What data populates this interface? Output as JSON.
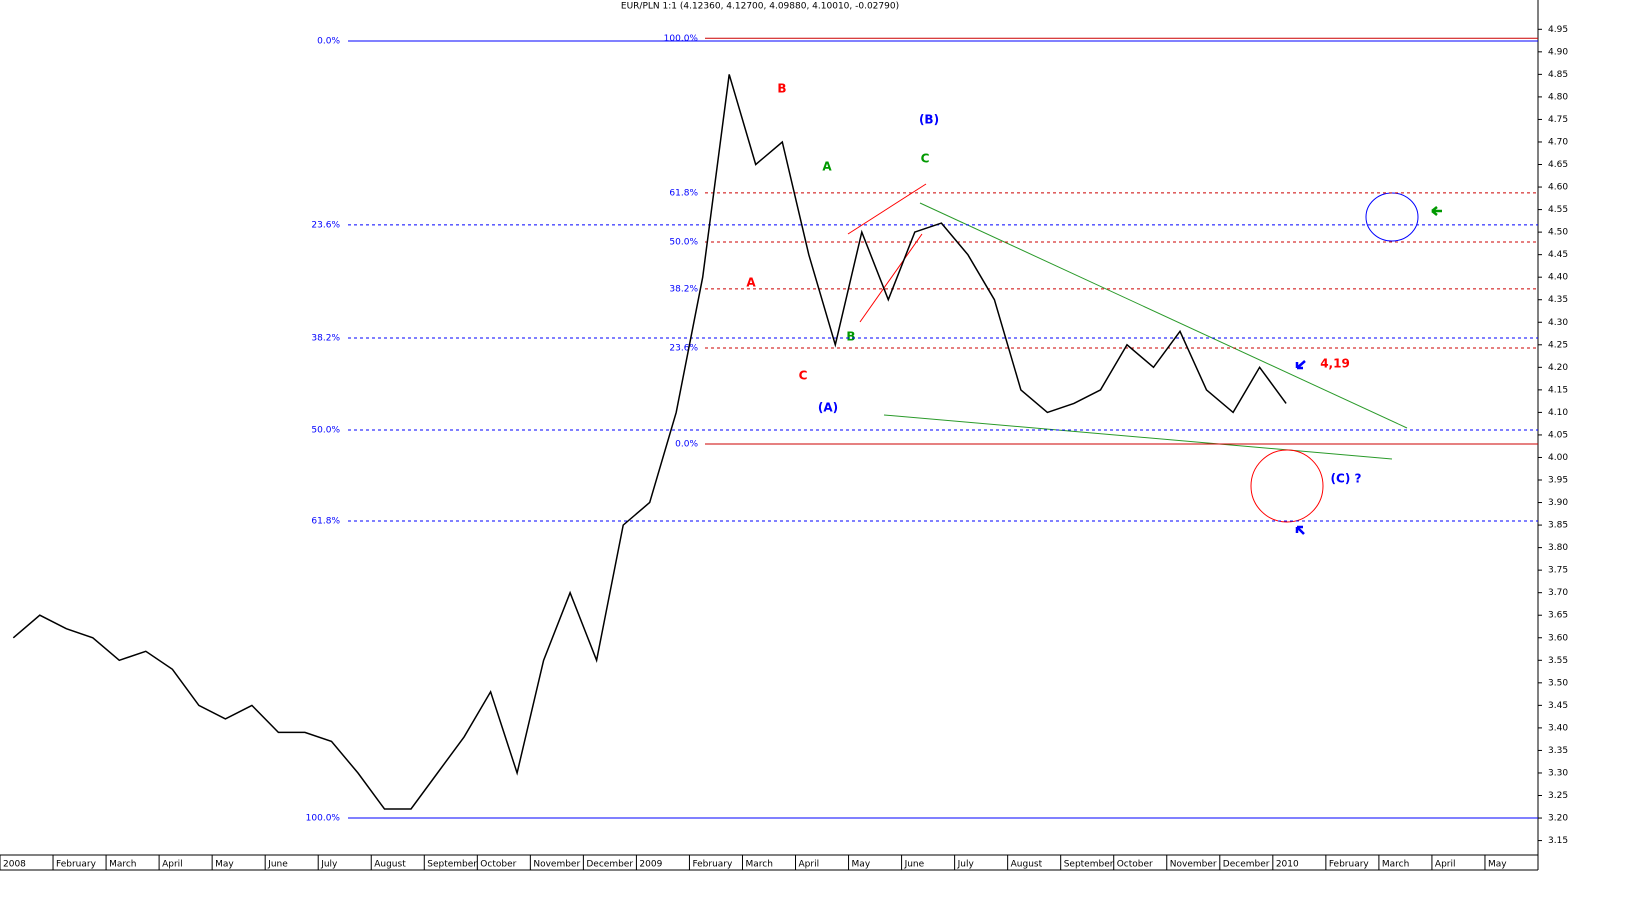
{
  "chart_data": {
    "type": "line",
    "title": "EUR/PLN 1:1 (4.12360, 4.12700, 4.09880, 4.10010, -0.02790)",
    "categories": [
      "2008",
      null,
      "February",
      null,
      "March",
      null,
      "April",
      null,
      "May",
      null,
      "June",
      null,
      "July",
      null,
      "August",
      null,
      "September",
      null,
      "October",
      null,
      "November",
      null,
      "December",
      null,
      "2009",
      null,
      "February",
      null,
      "March",
      null,
      "April",
      null,
      "May",
      null,
      "June",
      null,
      "July",
      null,
      "August",
      null,
      "September",
      null,
      "October",
      null,
      "November",
      null,
      "December",
      null,
      "2010",
      null,
      "February",
      null,
      "March",
      null,
      "April",
      null,
      "May",
      null
    ],
    "series": [
      {
        "name": "EUR/PLN",
        "color": "#000000",
        "values": [
          3.6,
          3.65,
          3.62,
          3.6,
          3.55,
          3.57,
          3.53,
          3.45,
          3.42,
          3.45,
          3.39,
          3.39,
          3.37,
          3.3,
          3.22,
          3.22,
          3.3,
          3.38,
          3.48,
          3.3,
          3.55,
          3.7,
          3.55,
          3.85,
          3.9,
          4.1,
          4.4,
          4.85,
          4.65,
          4.7,
          4.45,
          4.25,
          4.5,
          4.35,
          4.5,
          4.52,
          4.45,
          4.35,
          4.15,
          4.1,
          4.12,
          4.15,
          4.25,
          4.2,
          4.28,
          4.15,
          4.1,
          4.2,
          4.12,
          null,
          null,
          null,
          null,
          null,
          null,
          null,
          null,
          null
        ]
      }
    ],
    "ylim": [
      3.118,
      5.015
    ],
    "yticks": [
      3.15,
      {
        "value": 3.2,
        "label": "3.20"
      },
      3.25,
      {
        "value": 3.3,
        "label": "3.30"
      },
      3.35,
      {
        "value": 3.4,
        "label": "3.40"
      },
      3.45,
      {
        "value": 3.5,
        "label": "3.50"
      },
      3.55,
      {
        "value": 3.6,
        "label": "3.60"
      },
      3.65,
      {
        "value": 3.7,
        "label": "3.70"
      },
      3.75,
      {
        "value": 3.8,
        "label": "3.80"
      },
      3.85,
      {
        "value": 3.9,
        "label": "3.90"
      },
      3.95,
      {
        "value": 4,
        "label": "4.00"
      },
      4.05,
      {
        "value": 4.1,
        "label": "4.10"
      },
      4.15,
      {
        "value": 4.2,
        "label": "4.20"
      },
      4.25,
      {
        "value": 4.3,
        "label": "4.30"
      },
      4.35,
      {
        "value": 4.4,
        "label": "4.40"
      },
      4.45,
      {
        "value": 4.5,
        "label": "4.50"
      },
      4.55,
      {
        "value": 4.6,
        "label": "4.60"
      },
      4.65,
      {
        "value": 4.7,
        "label": "4.70"
      },
      4.75,
      {
        "value": 4.8,
        "label": "4.80"
      },
      4.85,
      {
        "value": 4.9,
        "label": "4.90"
      },
      4.95
    ],
    "levels_long": {
      "color": "#0000ff",
      "items": [
        {
          "label": "0.0%",
          "value": 4.924,
          "dashed": false
        },
        {
          "label": "23.6%",
          "value": 4.516,
          "dashed": true
        },
        {
          "label": "38.2%",
          "value": 4.265,
          "dashed": true
        },
        {
          "label": "50.0%",
          "value": 4.061,
          "dashed": true
        },
        {
          "label": "61.8%",
          "value": 3.859,
          "dashed": true
        },
        {
          "label": "100.0%",
          "value": 3.2,
          "dashed": false
        }
      ]
    },
    "levels_short": {
      "color": "#cc0000",
      "items": [
        {
          "label": "100.0%",
          "value": 4.93,
          "dashed": false
        },
        {
          "label": "61.8%",
          "value": 4.587,
          "dashed": true
        },
        {
          "label": "50.0%",
          "value": 4.478,
          "dashed": true
        },
        {
          "label": "38.2%",
          "value": 4.374,
          "dashed": true
        },
        {
          "label": "23.6%",
          "value": 4.243,
          "dashed": true
        },
        {
          "label": "0.0%",
          "value": 4.03,
          "dashed": false
        }
      ]
    },
    "annotations": [
      {
        "text": "B",
        "color": "#ff0000"
      },
      {
        "text": "A",
        "color": "#ff0000"
      },
      {
        "text": "C",
        "color": "#ff0000"
      },
      {
        "text": "A",
        "color": "#009900"
      },
      {
        "text": "B",
        "color": "#009900"
      },
      {
        "text": "C",
        "color": "#009900"
      },
      {
        "text": "(B)",
        "color": "#0000ff"
      },
      {
        "text": "(A)",
        "color": "#0000ff"
      },
      {
        "text": "(C) ?",
        "color": "#0000ff"
      },
      {
        "text": "4,19",
        "color": "#ff0000"
      }
    ]
  }
}
